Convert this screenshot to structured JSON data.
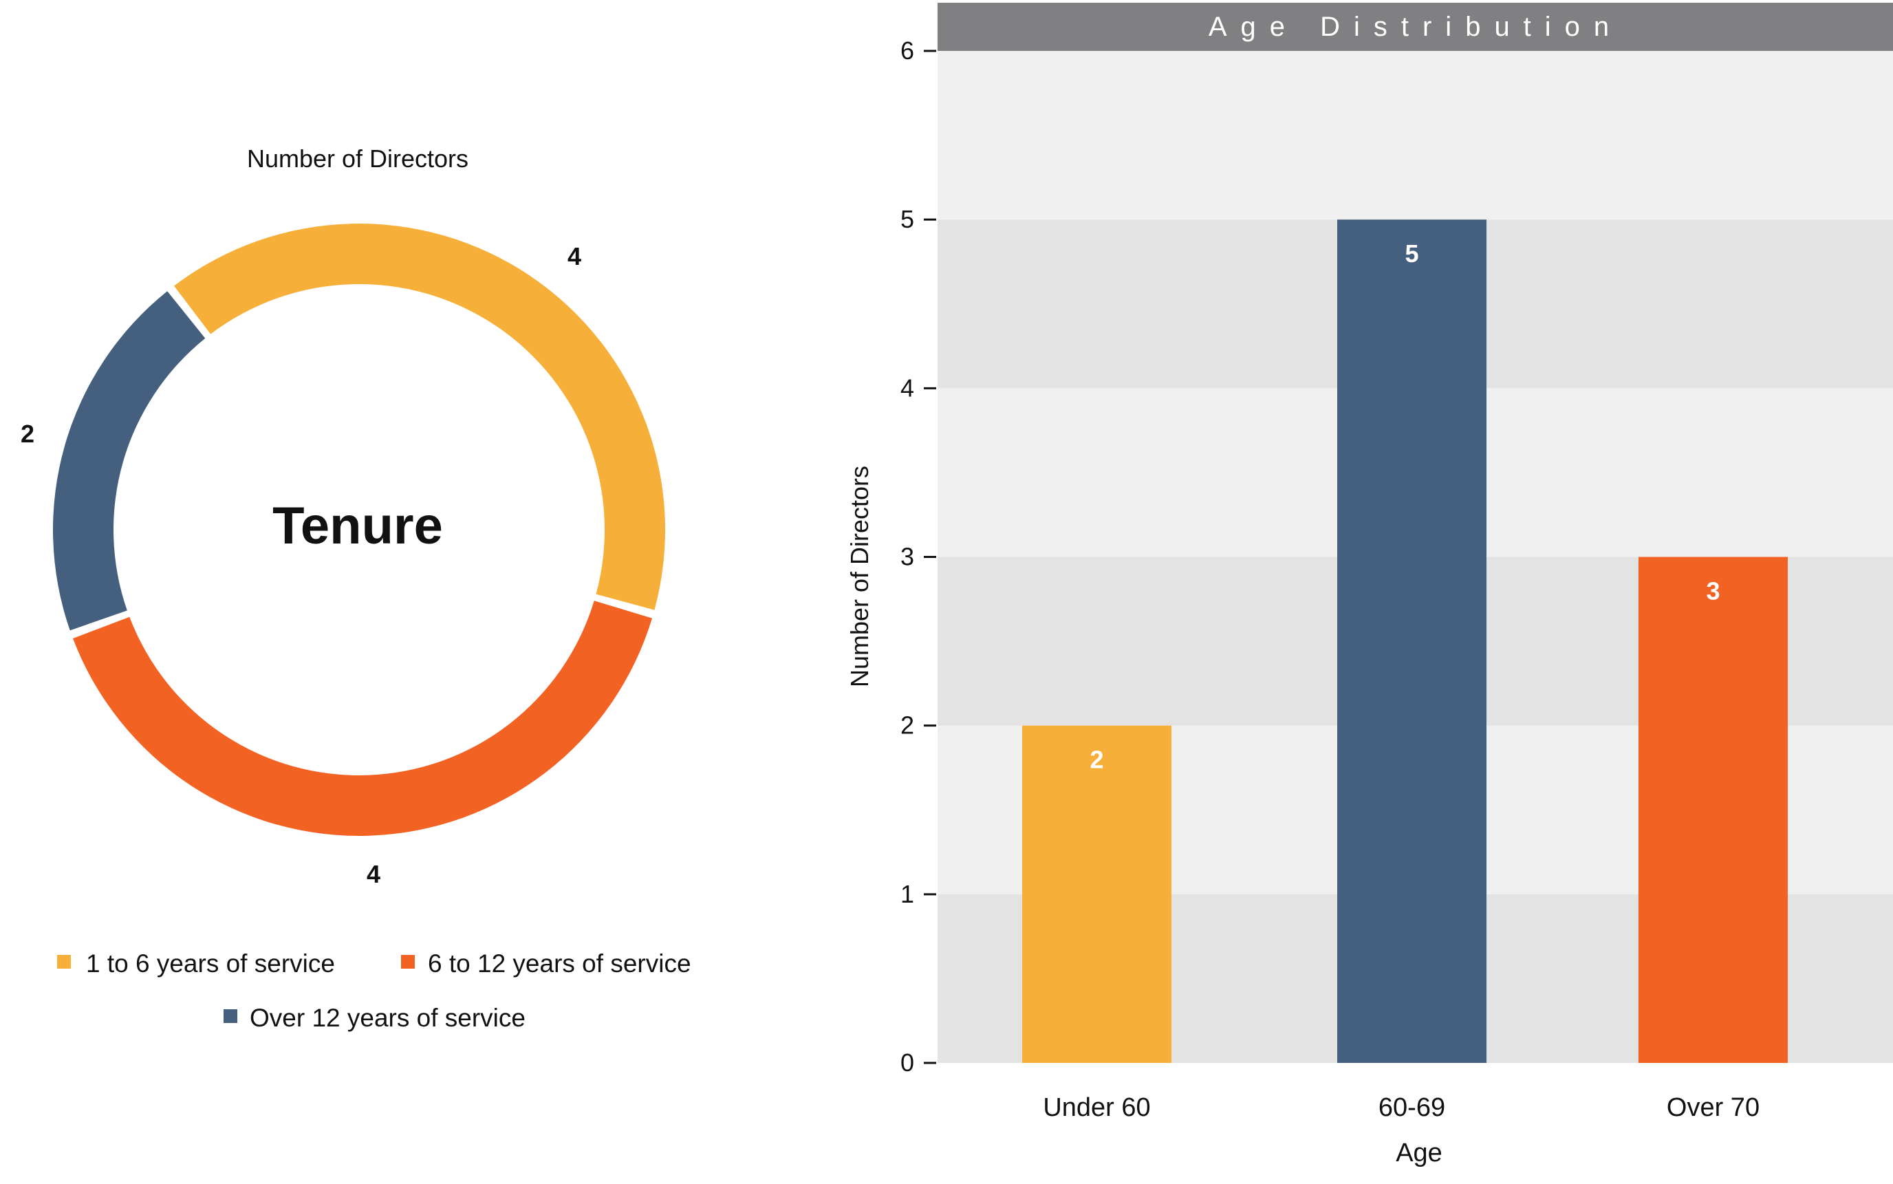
{
  "chart_data": [
    {
      "type": "pie",
      "variant": "donut",
      "title": "Number of Directors",
      "center_label": "Tenure",
      "slices": [
        {
          "label": "1 to 6 years of service",
          "value": 4,
          "value_label": "4",
          "color": "#F6B03A"
        },
        {
          "label": "6 to 12 years of service",
          "value": 4,
          "value_label": "4",
          "color": "#F26223"
        },
        {
          "label": "Over 12 years of service",
          "value": 2,
          "value_label": "2",
          "color": "#45607E"
        }
      ]
    },
    {
      "type": "bar",
      "title": "Age Distribution",
      "xlabel": "Age",
      "ylabel": "Number of Directors",
      "categories": [
        "Under 60",
        "60-69",
        "Over 70"
      ],
      "values": [
        2,
        5,
        3
      ],
      "value_labels": [
        "2",
        "5",
        "3"
      ],
      "colors": [
        "#F6B03A",
        "#45607E",
        "#F26223"
      ],
      "ylim": [
        0,
        6
      ],
      "yticks": [
        "0",
        "1",
        "2",
        "3",
        "4",
        "5",
        "6"
      ],
      "grid": "alternating horizontal bands"
    }
  ]
}
